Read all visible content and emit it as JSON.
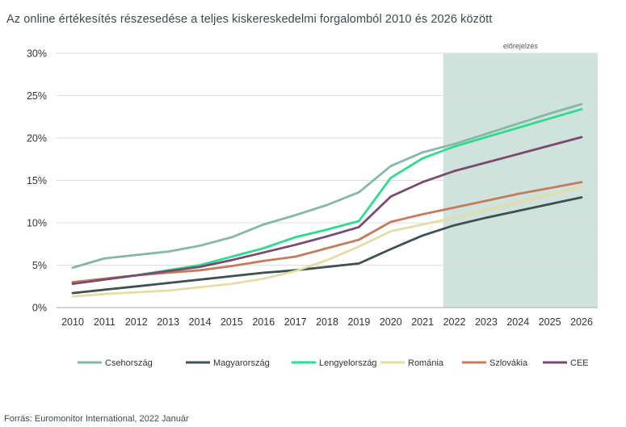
{
  "title": "Az online értékesítés részesedése a teljes kiskereskedelmi forgalomból 2010 és 2026 között",
  "source": "Forrás: Euromonitor International, 2022 Január",
  "chart_data": {
    "type": "line",
    "title": "Az online értékesítés részesedése a teljes kiskereskedelmi forgalomból 2010 és 2026 között",
    "xlabel": "",
    "ylabel": "",
    "x": [
      "2010",
      "2011",
      "2012",
      "2013",
      "2014",
      "2015",
      "2016",
      "2017",
      "2018",
      "2019",
      "2020",
      "2021",
      "2022",
      "2023",
      "2024",
      "2025",
      "2026"
    ],
    "ylim": [
      0,
      30
    ],
    "yticks": [
      0,
      5,
      10,
      15,
      20,
      25,
      30
    ],
    "ytick_labels": [
      "0%",
      "5%",
      "10%",
      "15%",
      "20%",
      "25%",
      "30%"
    ],
    "forecast": {
      "label": "előrejelzés",
      "from_index": 11.65
    },
    "grid": true,
    "legend_position": "bottom",
    "series": [
      {
        "name": "Csehország",
        "color": "#86b8a6",
        "values": [
          4.7,
          5.8,
          6.2,
          6.6,
          7.3,
          8.3,
          9.8,
          10.9,
          12.1,
          13.6,
          16.7,
          18.3,
          19.3,
          20.5,
          21.7,
          22.9,
          24.0
        ]
      },
      {
        "name": "Magyarország",
        "color": "#3e5050",
        "values": [
          1.7,
          2.1,
          2.5,
          2.9,
          3.3,
          3.7,
          4.1,
          4.4,
          4.8,
          5.2,
          6.9,
          8.5,
          9.7,
          10.6,
          11.4,
          12.2,
          13.0
        ]
      },
      {
        "name": "Lengyelország",
        "color": "#2ddc8e",
        "values": [
          2.9,
          3.4,
          3.8,
          4.4,
          5.0,
          6.0,
          7.0,
          8.3,
          9.2,
          10.2,
          15.3,
          17.6,
          19.0,
          20.1,
          21.2,
          22.3,
          23.4
        ]
      },
      {
        "name": "Románia",
        "color": "#e3dea6",
        "values": [
          1.3,
          1.6,
          1.8,
          2.0,
          2.4,
          2.8,
          3.4,
          4.3,
          5.6,
          7.2,
          9.0,
          9.8,
          10.6,
          11.5,
          12.4,
          13.3,
          14.2
        ]
      },
      {
        "name": "Szlovákia",
        "color": "#c57b5e",
        "values": [
          3.0,
          3.4,
          3.8,
          4.1,
          4.4,
          4.9,
          5.5,
          6.0,
          7.0,
          8.0,
          10.1,
          11.0,
          11.8,
          12.6,
          13.4,
          14.1,
          14.8
        ]
      },
      {
        "name": "CEE",
        "color": "#7b4a6e",
        "values": [
          2.8,
          3.3,
          3.8,
          4.3,
          4.8,
          5.6,
          6.5,
          7.4,
          8.4,
          9.5,
          13.1,
          14.8,
          16.1,
          17.1,
          18.1,
          19.1,
          20.1
        ]
      }
    ]
  }
}
